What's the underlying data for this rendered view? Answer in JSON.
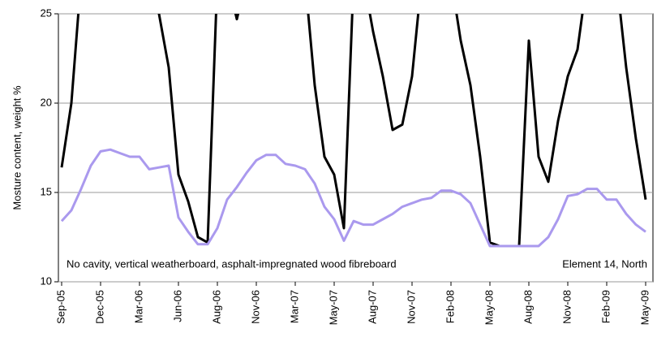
{
  "chart_data": {
    "type": "line",
    "y_label": "Mosture content, weight %",
    "annotations": [
      "No cavity, vertical weatherboard, asphalt-impregnated wood fibreboard",
      "Element 14, North"
    ],
    "categories": [
      "Sep-05",
      null,
      null,
      null,
      "Dec-05",
      null,
      null,
      null,
      "Mar-06",
      null,
      null,
      null,
      "Jun-06",
      null,
      null,
      null,
      "Aug-06",
      null,
      null,
      null,
      "Nov-06",
      null,
      null,
      null,
      "Mar-07",
      null,
      null,
      null,
      "May-07",
      null,
      null,
      null,
      "Aug-07",
      null,
      null,
      null,
      "Nov-07",
      null,
      null,
      null,
      "Feb-08",
      null,
      null,
      null,
      "May-08",
      null,
      null,
      null,
      "Aug-08",
      null,
      null,
      null,
      "Nov-08",
      null,
      null,
      null,
      "Feb-09",
      null,
      null,
      null,
      "May-09"
    ],
    "series": [
      {
        "color": "#000000",
        "values": [
          16.4,
          20,
          27,
          27,
          27,
          27,
          27,
          27,
          27,
          27,
          25,
          22,
          16,
          14.5,
          12.5,
          12.2,
          27,
          27,
          24.7,
          27,
          27,
          27,
          27,
          27,
          27,
          27,
          21,
          17,
          16,
          13,
          27,
          27,
          24,
          21.5,
          18.5,
          18.8,
          21.5,
          27,
          27,
          27,
          27,
          23.5,
          21,
          17,
          12.2,
          12,
          12,
          12,
          23.5,
          17,
          15.6,
          19,
          21.5,
          23,
          27,
          27,
          27,
          27,
          22,
          18,
          14.6
        ]
      },
      {
        "color": "#aa99ee",
        "values": [
          13.4,
          14,
          15.2,
          16.5,
          17.3,
          17.4,
          17.2,
          17,
          17,
          16.3,
          16.4,
          16.5,
          13.6,
          12.8,
          12.1,
          12.1,
          13,
          14.6,
          15.3,
          16.1,
          16.8,
          17.1,
          17.1,
          16.6,
          16.5,
          16.3,
          15.5,
          14.2,
          13.5,
          12.3,
          13.4,
          13.2,
          13.2,
          13.5,
          13.8,
          14.2,
          14.4,
          14.6,
          14.7,
          15.1,
          15.1,
          14.9,
          14.4,
          13.2,
          12,
          12,
          12,
          12,
          12,
          12,
          12.5,
          13.5,
          14.8,
          14.9,
          15.2,
          15.2,
          14.6,
          14.6,
          13.8,
          13.2,
          12.8
        ]
      }
    ],
    "ylim": [
      10,
      25
    ],
    "yticks": [
      10,
      15,
      20,
      25
    ],
    "grid": true
  }
}
